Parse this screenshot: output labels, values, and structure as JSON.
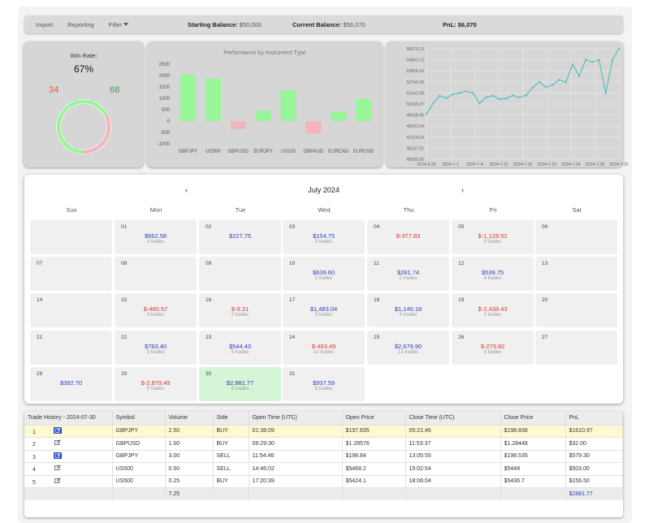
{
  "topbar": {
    "import_label": "Import",
    "reporting_label": "Reporting",
    "filter_label": "Filter",
    "starting_balance_label": "Starting Balance:",
    "starting_balance_value": "$50,000",
    "current_balance_label": "Current Balance:",
    "current_balance_value": "$56,070",
    "pnl_label": "PnL:",
    "pnl_value": "$6,070"
  },
  "win_rate": {
    "title": "Win Rate:",
    "rate": "67%",
    "losses": "34",
    "wins": "68",
    "win_fraction": 0.67
  },
  "chart_data": [
    {
      "type": "bar",
      "title": "Performance by Instrument Type",
      "categories": [
        "GBPJPY",
        "US500",
        "GBPUSD",
        "EURJPY",
        "US100",
        "GBPAUD",
        "EURCAD",
        "EURUSD"
      ],
      "values": [
        2050,
        1870,
        -350,
        450,
        1360,
        -550,
        420,
        980
      ],
      "yticks": [
        "2500",
        "2000",
        "1500",
        "1000",
        "500",
        "0",
        "-500",
        "-1000"
      ],
      "ylim": [
        -1000,
        2500
      ],
      "colors": {
        "positive": "#98f598",
        "negative": "#f4b4bd"
      }
    },
    {
      "type": "line",
      "x_ticks": [
        "2024-6-26",
        "2024-7-1",
        "2024-7-4",
        "2024-7-11",
        "2024-7-16",
        "2024-7-19",
        "2024-7-24",
        "2024-7-28",
        "2024-7-31"
      ],
      "y_ticks": [
        "56070.13",
        "54963.12",
        "53856.10",
        "52749.09",
        "51642.08",
        "50535.07",
        "49428.05",
        "48321.04",
        "47214.03",
        "46107.01",
        "45000.00"
      ],
      "ylim": [
        45000.0,
        56070.13
      ],
      "values": [
        49540,
        50580,
        51360,
        51130,
        51510,
        51640,
        51800,
        51630,
        50600,
        51210,
        51370,
        51010,
        51080,
        51380,
        51190,
        51400,
        52170,
        52750,
        52210,
        52450,
        52960,
        52700,
        54510,
        53330,
        54980,
        54740,
        54960,
        51590,
        54950,
        56070
      ],
      "color": "#4dbdbd"
    }
  ],
  "calendar": {
    "title": "July 2024",
    "prev": "‹",
    "next": "›",
    "weekdays": [
      "Sun",
      "Mon",
      "Tue",
      "Wed",
      "Thu",
      "Fri",
      "Sat"
    ],
    "days": [
      {
        "col": 1,
        "row": 0,
        "num": "01",
        "pnl": "$662.58",
        "trades": "3 trades",
        "sign": "pos"
      },
      {
        "col": 2,
        "row": 0,
        "num": "02",
        "pnl": "$227.75",
        "trades": "",
        "sign": "pos"
      },
      {
        "col": 3,
        "row": 0,
        "num": "03",
        "pnl": "$154.75",
        "trades": "3 trades",
        "sign": "pos"
      },
      {
        "col": 4,
        "row": 0,
        "num": "04",
        "pnl": "$-377.83",
        "trades": "",
        "sign": "neg"
      },
      {
        "col": 5,
        "row": 0,
        "num": "05",
        "pnl": "$-1,128.52",
        "trades": "3 trades",
        "sign": "neg"
      },
      {
        "col": 6,
        "row": 0,
        "num": "06",
        "pnl": "",
        "trades": "",
        "sign": ""
      },
      {
        "col": 0,
        "row": 1,
        "num": "07",
        "pnl": "",
        "trades": "",
        "sign": ""
      },
      {
        "col": 1,
        "row": 1,
        "num": "08",
        "pnl": "",
        "trades": "",
        "sign": ""
      },
      {
        "col": 2,
        "row": 1,
        "num": "09",
        "pnl": "",
        "trades": "",
        "sign": ""
      },
      {
        "col": 3,
        "row": 1,
        "num": "10",
        "pnl": "$639.60",
        "trades": "3 trades",
        "sign": "pos"
      },
      {
        "col": 4,
        "row": 1,
        "num": "11",
        "pnl": "$281.74",
        "trades": "2 trades",
        "sign": "pos"
      },
      {
        "col": 5,
        "row": 1,
        "num": "12",
        "pnl": "$539.75",
        "trades": "4 trades",
        "sign": "pos"
      },
      {
        "col": 6,
        "row": 1,
        "num": "13",
        "pnl": "",
        "trades": "",
        "sign": ""
      },
      {
        "col": 0,
        "row": 2,
        "num": "14",
        "pnl": "",
        "trades": "",
        "sign": ""
      },
      {
        "col": 1,
        "row": 2,
        "num": "15",
        "pnl": "$-480.57",
        "trades": "3 trades",
        "sign": "neg"
      },
      {
        "col": 2,
        "row": 2,
        "num": "16",
        "pnl": "$-9.31",
        "trades": "2 trades",
        "sign": "neg"
      },
      {
        "col": 3,
        "row": 2,
        "num": "17",
        "pnl": "$1,483.04",
        "trades": "5 trades",
        "sign": "pos"
      },
      {
        "col": 4,
        "row": 2,
        "num": "18",
        "pnl": "$1,140.18",
        "trades": "4 trades",
        "sign": "pos"
      },
      {
        "col": 5,
        "row": 2,
        "num": "19",
        "pnl": "$-2,438.43",
        "trades": "3 trades",
        "sign": "neg"
      },
      {
        "col": 6,
        "row": 2,
        "num": "20",
        "pnl": "",
        "trades": "",
        "sign": ""
      },
      {
        "col": 0,
        "row": 3,
        "num": "21",
        "pnl": "",
        "trades": "",
        "sign": ""
      },
      {
        "col": 1,
        "row": 3,
        "num": "22",
        "pnl": "$783.40",
        "trades": "3 trades",
        "sign": "pos"
      },
      {
        "col": 2,
        "row": 3,
        "num": "23",
        "pnl": "$544.43",
        "trades": "5 trades",
        "sign": "pos"
      },
      {
        "col": 3,
        "row": 3,
        "num": "24",
        "pnl": "$-463.49",
        "trades": "10 trades",
        "sign": "neg"
      },
      {
        "col": 4,
        "row": 3,
        "num": "25",
        "pnl": "$2,679.90",
        "trades": "13 trades",
        "sign": "pos"
      },
      {
        "col": 5,
        "row": 3,
        "num": "26",
        "pnl": "$-279.82",
        "trades": "9 trades",
        "sign": "neg"
      },
      {
        "col": 6,
        "row": 3,
        "num": "27",
        "pnl": "",
        "trades": "",
        "sign": ""
      },
      {
        "col": 0,
        "row": 4,
        "num": "28",
        "pnl": "$392.70",
        "trades": "",
        "sign": "pos"
      },
      {
        "col": 1,
        "row": 4,
        "num": "29",
        "pnl": "$-2,879.49",
        "trades": "5 trades",
        "sign": "neg"
      },
      {
        "col": 2,
        "row": 4,
        "num": "30",
        "pnl": "$2,881.77",
        "trades": "5 trades",
        "sign": "pos",
        "selected": true
      },
      {
        "col": 3,
        "row": 4,
        "num": "31",
        "pnl": "$937.59",
        "trades": "6 trades",
        "sign": "pos"
      }
    ]
  },
  "trade_history": {
    "title": "Trade History - 2024-07-30",
    "columns": [
      "Symbol",
      "Volume",
      "Side",
      "Open Time (UTC)",
      "Open Price",
      "Close Time (UTC)",
      "Close Price",
      "PnL"
    ],
    "rows": [
      {
        "idx": "1",
        "symbol": "GBPJPY",
        "volume": "2.50",
        "side": "BUY",
        "open_time": "01:38:09",
        "open_price": "$197.835",
        "close_time": "05:21:46",
        "close_price": "$198.838",
        "pnl": "$1610.97",
        "edit_active": true,
        "selected": true
      },
      {
        "idx": "2",
        "symbol": "GBPUSD",
        "volume": "1.00",
        "side": "BUY",
        "open_time": "09:29:30",
        "open_price": "$1.28576",
        "close_time": "11:53:37",
        "close_price": "$1.28448",
        "pnl": "$32.00",
        "edit_active": false
      },
      {
        "idx": "3",
        "symbol": "GBPJPY",
        "volume": "3.00",
        "side": "SELL",
        "open_time": "11:54:46",
        "open_price": "$198.84",
        "close_time": "13:05:55",
        "close_price": "$198.535",
        "pnl": "$579.30",
        "edit_active": true
      },
      {
        "idx": "4",
        "symbol": "US500",
        "volume": "0.50",
        "side": "SELL",
        "open_time": "14:46:02",
        "open_price": "$5468.2",
        "close_time": "15:02:54",
        "close_price": "$5448",
        "pnl": "$503.00",
        "edit_active": false
      },
      {
        "idx": "5",
        "symbol": "US500",
        "volume": "0.25",
        "side": "BUY",
        "open_time": "17:20:39",
        "open_price": "$5424.1",
        "close_time": "18:06:04",
        "close_price": "$5436.7",
        "pnl": "$156.50",
        "edit_active": false
      }
    ],
    "footer": {
      "volume": "7.25",
      "pnl": "$2881.77"
    }
  }
}
